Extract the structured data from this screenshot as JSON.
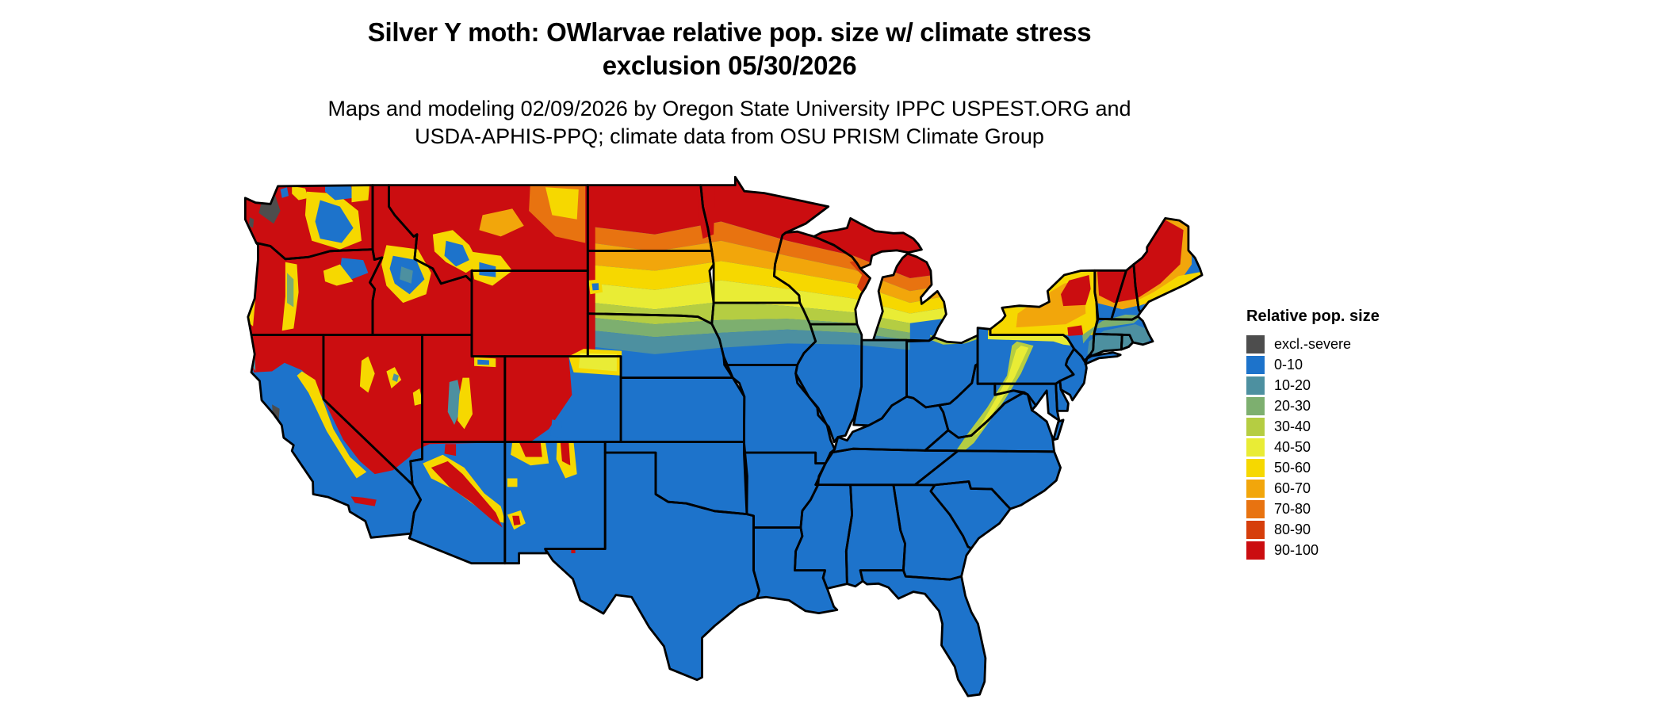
{
  "header": {
    "title_line1": "Silver Y moth: OWlarvae relative pop. size w/ climate stress",
    "title_line2": "exclusion 05/30/2026",
    "subtitle_line1": "Maps and modeling 02/09/2026 by Oregon State University IPPC USPEST.ORG and",
    "subtitle_line2": "USDA-APHIS-PPQ; climate data from OSU PRISM Climate Group"
  },
  "legend": {
    "title": "Relative pop. size",
    "items": [
      {
        "key": "excl",
        "label": "excl.-severe",
        "color": "#4d4d4d"
      },
      {
        "key": "blue",
        "label": "0-10",
        "color": "#1d73cb"
      },
      {
        "key": "teal",
        "label": "10-20",
        "color": "#4d90a0"
      },
      {
        "key": "green",
        "label": "20-30",
        "color": "#7daf6f"
      },
      {
        "key": "ygreen",
        "label": "30-40",
        "color": "#b5cd42"
      },
      {
        "key": "yellow",
        "label": "40-50",
        "color": "#e9ec35"
      },
      {
        "key": "gold",
        "label": "50-60",
        "color": "#f6d800"
      },
      {
        "key": "orange",
        "label": "60-70",
        "color": "#f2a60b"
      },
      {
        "key": "dkorange",
        "label": "70-80",
        "color": "#e87310"
      },
      {
        "key": "redorange",
        "label": "80-90",
        "color": "#d63e0b"
      },
      {
        "key": "red",
        "label": "90-100",
        "color": "#cb0d10"
      }
    ]
  },
  "map": {
    "region": "Contiguous United States",
    "base_fill_key": "blue",
    "border_color": "#000000",
    "water_background": "#ffffff"
  }
}
